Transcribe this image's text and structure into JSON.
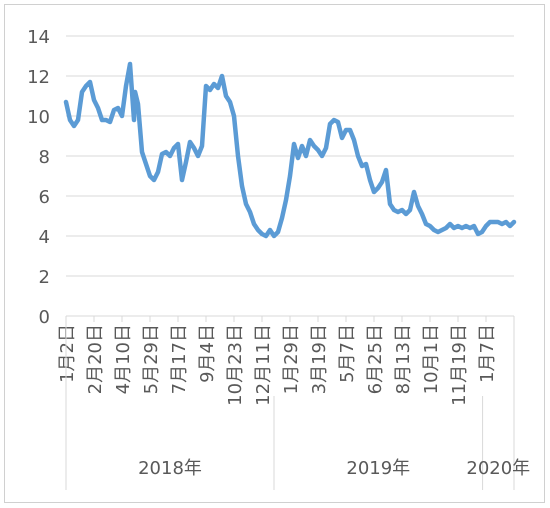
{
  "chart_data": {
    "type": "line",
    "title": "",
    "xlabel": "",
    "ylabel": "",
    "ylim": [
      0,
      14
    ],
    "yticks": [
      0,
      2,
      4,
      6,
      8,
      10,
      12,
      14
    ],
    "grid": "horizontal",
    "legend": "none",
    "colors": {
      "line": "#5b9bd5",
      "grid": "#d9d9d9",
      "axis_text": "#595959"
    },
    "x_date_range": [
      "2018-01-02",
      "2020-02-25"
    ],
    "tick_labels": [
      {
        "date": "2018-01-02",
        "label": "1月2日"
      },
      {
        "date": "2018-02-20",
        "label": "2月20日"
      },
      {
        "date": "2018-04-10",
        "label": "4月10日"
      },
      {
        "date": "2018-05-29",
        "label": "5月29日"
      },
      {
        "date": "2018-07-17",
        "label": "7月17日"
      },
      {
        "date": "2018-09-04",
        "label": "9月4日"
      },
      {
        "date": "2018-10-23",
        "label": "10月23日"
      },
      {
        "date": "2018-12-11",
        "label": "12月11日"
      },
      {
        "date": "2019-01-29",
        "label": "1月29日"
      },
      {
        "date": "2019-03-19",
        "label": "3月19日"
      },
      {
        "date": "2019-05-07",
        "label": "5月7日"
      },
      {
        "date": "2019-06-25",
        "label": "6月25日"
      },
      {
        "date": "2019-08-13",
        "label": "8月13日"
      },
      {
        "date": "2019-10-01",
        "label": "10月1日"
      },
      {
        "date": "2019-11-19",
        "label": "11月19日"
      },
      {
        "date": "2020-01-07",
        "label": "1月7日"
      }
    ],
    "year_groups": [
      {
        "label": "2018年",
        "start": "2018-01-02",
        "end": "2019-01-01"
      },
      {
        "label": "2019年",
        "start": "2019-01-01",
        "end": "2020-01-01"
      },
      {
        "label": "2020年",
        "start": "2020-01-01",
        "end": "2020-02-25"
      }
    ],
    "series": [
      {
        "x": [
          "2018-01-02",
          "2018-01-09",
          "2018-01-16",
          "2018-01-23",
          "2018-01-30",
          "2018-02-06",
          "2018-02-13",
          "2018-02-20",
          "2018-02-27",
          "2018-03-06",
          "2018-03-13",
          "2018-03-20",
          "2018-03-27",
          "2018-04-03",
          "2018-04-10",
          "2018-04-17",
          "2018-04-24",
          "2018-05-01",
          "2018-05-03",
          "2018-05-08",
          "2018-05-15",
          "2018-05-22",
          "2018-05-29",
          "2018-06-05",
          "2018-06-12",
          "2018-06-19",
          "2018-06-26",
          "2018-07-03",
          "2018-07-10",
          "2018-07-17",
          "2018-07-24",
          "2018-07-31",
          "2018-08-07",
          "2018-08-14",
          "2018-08-21",
          "2018-08-28",
          "2018-09-04",
          "2018-09-11",
          "2018-09-18",
          "2018-09-25",
          "2018-10-02",
          "2018-10-09",
          "2018-10-16",
          "2018-10-23",
          "2018-10-30",
          "2018-11-06",
          "2018-11-13",
          "2018-11-20",
          "2018-11-27",
          "2018-12-04",
          "2018-12-11",
          "2018-12-18",
          "2018-12-25",
          "2019-01-01",
          "2019-01-08",
          "2019-01-15",
          "2019-01-22",
          "2019-01-29",
          "2019-02-05",
          "2019-02-12",
          "2019-02-19",
          "2019-02-26",
          "2019-03-05",
          "2019-03-12",
          "2019-03-19",
          "2019-03-26",
          "2019-04-02",
          "2019-04-09",
          "2019-04-16",
          "2019-04-23",
          "2019-04-30",
          "2019-05-07",
          "2019-05-14",
          "2019-05-21",
          "2019-05-28",
          "2019-06-04",
          "2019-06-11",
          "2019-06-18",
          "2019-06-25",
          "2019-07-02",
          "2019-07-09",
          "2019-07-16",
          "2019-07-23",
          "2019-07-30",
          "2019-08-06",
          "2019-08-13",
          "2019-08-20",
          "2019-08-27",
          "2019-09-03",
          "2019-09-10",
          "2019-09-17",
          "2019-09-24",
          "2019-10-01",
          "2019-10-08",
          "2019-10-15",
          "2019-10-22",
          "2019-10-29",
          "2019-11-05",
          "2019-11-12",
          "2019-11-19",
          "2019-11-26",
          "2019-12-03",
          "2019-12-10",
          "2019-12-17",
          "2019-12-24",
          "2019-12-31",
          "2020-01-07",
          "2020-01-14",
          "2020-01-21",
          "2020-01-28",
          "2020-02-04",
          "2020-02-11",
          "2020-02-18",
          "2020-02-25"
        ],
        "y": [
          10.7,
          9.8,
          9.5,
          9.8,
          11.2,
          11.5,
          11.7,
          10.8,
          10.4,
          9.8,
          9.8,
          9.7,
          10.3,
          10.4,
          10.0,
          11.5,
          12.6,
          9.8,
          11.2,
          10.6,
          8.2,
          7.6,
          7.0,
          6.8,
          7.2,
          8.1,
          8.2,
          8.0,
          8.4,
          8.6,
          6.8,
          7.7,
          8.7,
          8.4,
          8.0,
          8.5,
          11.5,
          11.3,
          11.6,
          11.4,
          12.0,
          11.0,
          10.7,
          10.0,
          8.0,
          6.5,
          5.6,
          5.2,
          4.6,
          4.3,
          4.1,
          4.0,
          4.3,
          4.0,
          4.2,
          4.9,
          5.8,
          7.0,
          8.6,
          7.9,
          8.5,
          8.0,
          8.8,
          8.5,
          8.3,
          8.0,
          8.4,
          9.6,
          9.8,
          9.7,
          8.9,
          9.3,
          9.3,
          8.8,
          8.0,
          7.5,
          7.6,
          6.8,
          6.2,
          6.4,
          6.7,
          7.3,
          5.6,
          5.3,
          5.2,
          5.3,
          5.1,
          5.3,
          6.2,
          5.5,
          5.1,
          4.6,
          4.5,
          4.3,
          4.2,
          4.3,
          4.4,
          4.6,
          4.4,
          4.5,
          4.4,
          4.5,
          4.4,
          4.5,
          4.1,
          4.2,
          4.5,
          4.7,
          4.7,
          4.7,
          4.6,
          4.7,
          4.5,
          4.7
        ]
      }
    ]
  }
}
